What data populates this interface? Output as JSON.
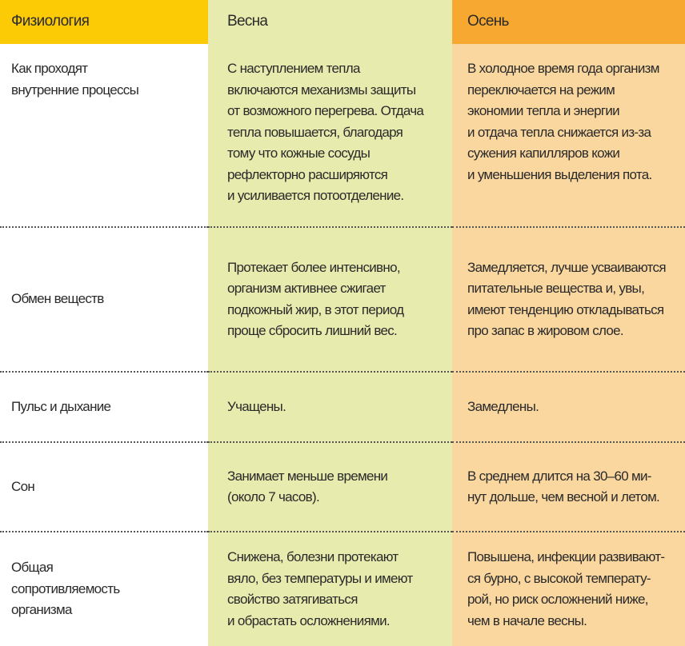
{
  "header": {
    "col1": "Физиология",
    "col2": "Весна",
    "col3": "Осень"
  },
  "colors": {
    "header_yellow": "#fccb06",
    "spring": "#e8ebae",
    "autumn_header": "#f7a830",
    "autumn": "#fbd7a0"
  },
  "rows": [
    {
      "label": "Как проходят\nвнутренние процессы",
      "spring": "С наступлением тепла\nвключаются механизмы защиты\nот возможного перегрева. Отдача\nтепла повышается, благодаря\nтому что кожные сосуды\nрефлекторно расширяются\nи усиливается потоотделение.",
      "autumn": "В холодное время года организм\nпереключается на режим\nэкономии тепла и энергии\nи отдача тепла снижается из-за\nсужения капилляров кожи\nи уменьшения выделения пота."
    },
    {
      "label": "Обмен веществ",
      "spring": "Протекает более интенсивно,\nорганизм активнее сжигает\nподкожный жир, в этот период\nпроще сбросить лишний вес.",
      "autumn": "Замедляется, лучше усваиваются\nпитательные вещества и, увы,\nимеют тенденцию откладываться\nпро запас в жировом слое."
    },
    {
      "label": "Пульс и дыхание",
      "spring": "Учащены.",
      "autumn": "Замедлены."
    },
    {
      "label": "Сон",
      "spring": "Занимает меньше времени\n(около 7 часов).",
      "autumn": "В среднем длится на 30–60 ми-\nнут дольше, чем весной и летом."
    },
    {
      "label": "Общая\nсопротивляемость\nорганизма",
      "spring": "Снижена, болезни протекают\nвяло, без температуры и имеют\nсвойство затягиваться\nи обрастать осложнениями.",
      "autumn": "Повышена, инфекции развивают-\nся бурно, с высокой температу-\nрой, но риск осложнений ниже,\nчем в начале весны."
    }
  ]
}
